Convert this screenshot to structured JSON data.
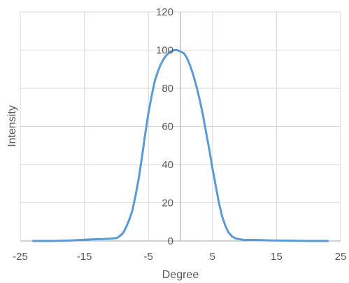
{
  "chart_data": {
    "type": "scatter",
    "xlabel": "Degree",
    "ylabel": "Intensity",
    "xlim": [
      -25,
      25
    ],
    "ylim": [
      0,
      120
    ],
    "xticks": [
      -25,
      -15,
      -5,
      5,
      15,
      25
    ],
    "xtick_labels": [
      "-25",
      "-15",
      "-5",
      "5",
      "15",
      "25"
    ],
    "yticks": [
      0,
      20,
      40,
      60,
      80,
      100,
      120
    ],
    "ytick_labels": [
      "0",
      "20",
      "40",
      "60",
      "80",
      "100",
      "120"
    ],
    "grid": true,
    "legend": "none",
    "line_color": "#5b9bd5",
    "series": [
      {
        "x": [
          -23,
          -20,
          -17,
          -14,
          -12,
          -11,
          -10,
          -9.5,
          -9,
          -8.5,
          -8,
          -7.5,
          -7,
          -6.5,
          -6,
          -5.5,
          -5,
          -4.5,
          -4,
          -3.5,
          -3,
          -2.5,
          -2,
          -1.5,
          -1,
          -0.5,
          0,
          0.5,
          1,
          1.5,
          2,
          2.5,
          3,
          3.5,
          4,
          4.5,
          5,
          5.5,
          6,
          6.5,
          7,
          7.5,
          8,
          8.5,
          9,
          9.5,
          10,
          11,
          12,
          14,
          17,
          20,
          23
        ],
        "y": [
          0,
          0,
          0.3,
          0.8,
          1,
          1.2,
          1.5,
          2.5,
          4,
          7,
          11,
          16,
          24,
          33,
          44,
          56,
          67,
          76,
          84,
          89,
          93,
          96,
          98,
          99.3,
          100,
          100,
          99.2,
          98.5,
          96,
          92,
          87,
          81,
          74,
          66,
          57,
          48,
          38,
          29,
          20,
          13,
          8,
          4.5,
          2.5,
          1.5,
          1,
          0.8,
          0.5,
          0.6,
          0.5,
          0.3,
          0.2,
          0,
          0
        ]
      }
    ]
  }
}
